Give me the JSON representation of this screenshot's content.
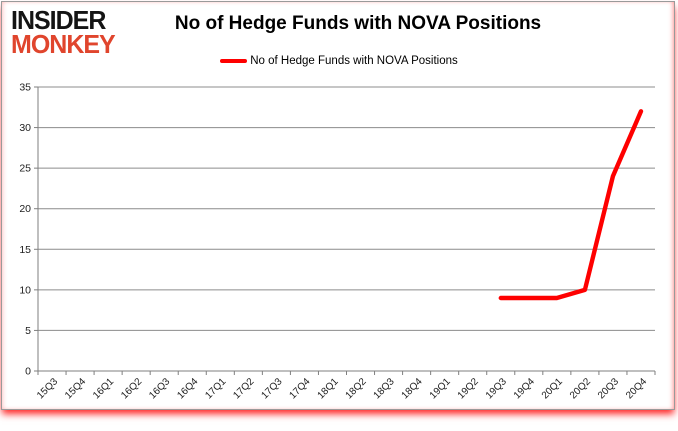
{
  "logo": {
    "line1": "INSIDER",
    "line2": "MONKEY"
  },
  "header": {
    "title": "No of Hedge Funds with NOVA Positions"
  },
  "legend": {
    "label": "No of Hedge Funds with NOVA Positions",
    "marker_color": "#fe0000"
  },
  "colors": {
    "series_red": "#fe0000",
    "gridline_gray": "#8c8c8c",
    "axis_gray": "#7f7f7f",
    "tick_label": "#212121",
    "logo_black": "#141414",
    "logo_red": "#e0452d",
    "card_shadow_red": "#ff0000"
  },
  "chart_data": {
    "type": "line",
    "title": "No of Hedge Funds with NOVA Positions",
    "categories": [
      "15Q3",
      "15Q4",
      "16Q1",
      "16Q2",
      "16Q3",
      "16Q4",
      "17Q1",
      "17Q2",
      "17Q3",
      "17Q4",
      "18Q1",
      "18Q2",
      "18Q3",
      "18Q4",
      "19Q1",
      "19Q2",
      "19Q3",
      "19Q4",
      "20Q1",
      "20Q2",
      "20Q3",
      "20Q4"
    ],
    "series": [
      {
        "name": "No of Hedge Funds with NOVA Positions",
        "color": "#fe0000",
        "values": [
          null,
          null,
          null,
          null,
          null,
          null,
          null,
          null,
          null,
          null,
          null,
          null,
          null,
          null,
          null,
          null,
          9,
          9,
          9,
          10,
          24,
          32
        ]
      }
    ],
    "xlabel": "",
    "ylabel": "",
    "ylim": [
      0,
      35
    ],
    "ytick_interval": 5,
    "yticks": [
      0,
      5,
      10,
      15,
      20,
      25,
      30,
      35
    ],
    "grid": true,
    "legend_position": "top"
  }
}
